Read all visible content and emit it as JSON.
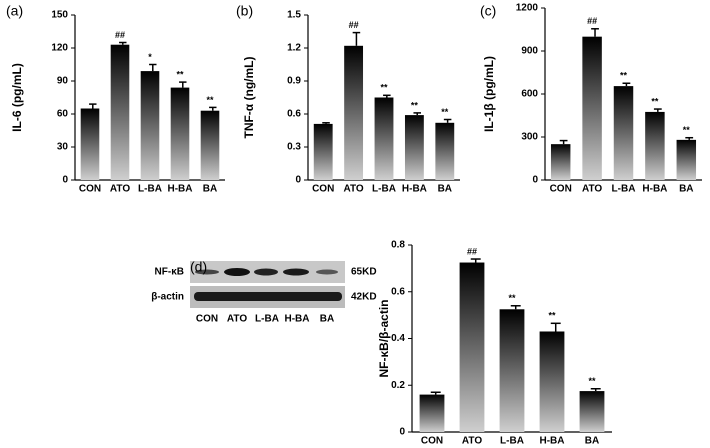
{
  "chart_data": [
    {
      "type": "bar",
      "panel_label": "(a)",
      "y_label": "IL-6 (pg/mL)",
      "categories": [
        "CON",
        "ATO",
        "L-BA",
        "H-BA",
        "BA"
      ],
      "values": [
        65,
        123,
        99,
        84,
        63
      ],
      "errors": [
        4,
        2,
        6,
        5,
        3
      ],
      "annotations": [
        null,
        "##",
        "*",
        "**",
        "**"
      ],
      "ylim": [
        0,
        150
      ],
      "yticks": [
        0,
        30,
        60,
        90,
        120,
        150
      ],
      "gradient": [
        "#000000",
        "#cfcfcf"
      ]
    },
    {
      "type": "bar",
      "panel_label": "(b)",
      "y_label": "TNF-α (ng/mL)",
      "categories": [
        "CON",
        "ATO",
        "L-BA",
        "H-BA",
        "BA"
      ],
      "values": [
        0.51,
        1.22,
        0.75,
        0.59,
        0.52
      ],
      "errors": [
        0.01,
        0.12,
        0.02,
        0.02,
        0.03
      ],
      "annotations": [
        null,
        "##",
        "**",
        "**",
        "**"
      ],
      "ylim": [
        0,
        1.5
      ],
      "yticks": [
        0,
        0.3,
        0.6,
        0.9,
        1.2,
        1.5
      ],
      "gradient": [
        "#000000",
        "#cfcfcf"
      ]
    },
    {
      "type": "bar",
      "panel_label": "(c)",
      "y_label": "IL-1β (pg/mL)",
      "categories": [
        "CON",
        "ATO",
        "L-BA",
        "H-BA",
        "BA"
      ],
      "values": [
        250,
        1000,
        655,
        475,
        280
      ],
      "errors": [
        25,
        55,
        20,
        20,
        15
      ],
      "annotations": [
        null,
        "##",
        "**",
        "**",
        "**"
      ],
      "ylim": [
        0,
        1200
      ],
      "yticks": [
        0,
        300,
        600,
        900,
        1200
      ],
      "gradient": [
        "#000000",
        "#cfcfcf"
      ]
    },
    {
      "type": "bar",
      "panel_label": "(d)",
      "y_label": "NF-κB/β-actin",
      "categories": [
        "CON",
        "ATO",
        "L-BA",
        "H-BA",
        "BA"
      ],
      "values": [
        0.16,
        0.725,
        0.525,
        0.43,
        0.175
      ],
      "errors": [
        0.01,
        0.015,
        0.015,
        0.035,
        0.01
      ],
      "annotations": [
        null,
        "##",
        "**",
        "**",
        "**"
      ],
      "ylim": [
        0,
        0.8
      ],
      "yticks": [
        0,
        0.2,
        0.4,
        0.6,
        0.8
      ],
      "gradient": [
        "#000000",
        "#cfcfcf"
      ]
    }
  ],
  "blot": {
    "rows": [
      "NF-κB",
      "β-actin"
    ],
    "sizes": [
      "65KD",
      "42KD"
    ],
    "lanes": [
      "CON",
      "ATO",
      "L-BA",
      "H-BA",
      "BA"
    ]
  }
}
